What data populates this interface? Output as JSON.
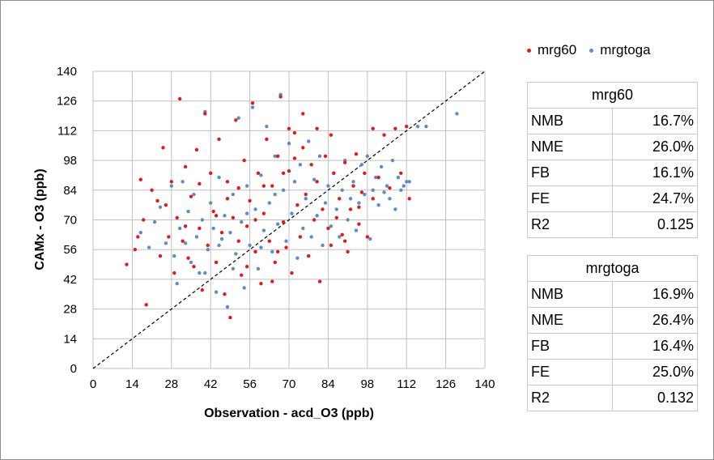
{
  "chart_data": {
    "type": "scatter",
    "xlabel": "Observation - acd_O3  (ppb)",
    "ylabel": "CAMx - O3  (ppb)",
    "xlim": [
      0,
      140
    ],
    "ylim": [
      0,
      140
    ],
    "x_ticks": [
      "0",
      "14",
      "28",
      "42",
      "56",
      "70",
      "84",
      "98",
      "112",
      "126",
      "140"
    ],
    "y_ticks": [
      "0",
      "14",
      "28",
      "42",
      "56",
      "70",
      "84",
      "98",
      "112",
      "126",
      "140"
    ],
    "grid": true,
    "reference_line": "1:1 dashed",
    "legend_position": "top-right",
    "series": [
      {
        "name": "mrg60",
        "color": "#e31a1c",
        "points": [
          [
            12,
            49
          ],
          [
            15,
            56
          ],
          [
            16,
            62
          ],
          [
            17,
            89
          ],
          [
            18,
            70
          ],
          [
            19,
            30
          ],
          [
            21,
            84
          ],
          [
            23,
            79
          ],
          [
            24,
            53
          ],
          [
            25,
            104
          ],
          [
            27,
            62
          ],
          [
            28,
            88
          ],
          [
            29,
            45
          ],
          [
            30,
            71
          ],
          [
            31,
            127
          ],
          [
            32,
            60
          ],
          [
            33,
            95
          ],
          [
            34,
            52
          ],
          [
            35,
            81
          ],
          [
            36,
            48
          ],
          [
            37,
            103
          ],
          [
            38,
            66
          ],
          [
            39,
            37
          ],
          [
            40,
            120
          ],
          [
            41,
            58
          ],
          [
            42,
            92
          ],
          [
            43,
            74
          ],
          [
            44,
            50
          ],
          [
            45,
            108
          ],
          [
            46,
            64
          ],
          [
            47,
            35
          ],
          [
            48,
            88
          ],
          [
            49,
            24
          ],
          [
            50,
            71
          ],
          [
            51,
            117
          ],
          [
            52,
            60
          ],
          [
            53,
            44
          ],
          [
            54,
            98
          ],
          [
            55,
            67
          ],
          [
            56,
            79
          ],
          [
            57,
            125
          ],
          [
            58,
            55
          ],
          [
            59,
            92
          ],
          [
            60,
            40
          ],
          [
            61,
            73
          ],
          [
            62,
            108
          ],
          [
            63,
            60
          ],
          [
            64,
            86
          ],
          [
            65,
            50
          ],
          [
            66,
            100
          ],
          [
            67,
            128
          ],
          [
            68,
            69
          ],
          [
            69,
            57
          ],
          [
            70,
            93
          ],
          [
            71,
            45
          ],
          [
            72,
            111
          ],
          [
            73,
            77
          ],
          [
            74,
            62
          ],
          [
            75,
            104
          ],
          [
            76,
            82
          ],
          [
            77,
            53
          ],
          [
            78,
            96
          ],
          [
            79,
            70
          ],
          [
            80,
            88
          ],
          [
            81,
            41
          ],
          [
            82,
            75
          ],
          [
            83,
            100
          ],
          [
            84,
            66
          ],
          [
            85,
            58
          ],
          [
            86,
            92
          ],
          [
            87,
            71
          ],
          [
            88,
            80
          ],
          [
            89,
            63
          ],
          [
            90,
            97
          ],
          [
            91,
            55
          ],
          [
            92,
            75
          ],
          [
            93,
            86
          ],
          [
            94,
            101
          ],
          [
            95,
            68
          ],
          [
            96,
            83
          ],
          [
            97,
            92
          ],
          [
            98,
            62
          ],
          [
            100,
            113
          ],
          [
            102,
            90
          ],
          [
            104,
            110
          ],
          [
            106,
            85
          ],
          [
            108,
            113
          ],
          [
            110,
            92
          ],
          [
            112,
            114
          ],
          [
            113,
            80
          ],
          [
            26,
            77
          ],
          [
            33,
            67
          ],
          [
            38,
            87
          ],
          [
            44,
            72
          ],
          [
            48,
            80
          ],
          [
            52,
            85
          ],
          [
            55,
            48
          ],
          [
            58,
            70
          ],
          [
            61,
            86
          ],
          [
            64,
            41
          ],
          [
            66,
            55
          ],
          [
            68,
            92
          ],
          [
            70,
            113
          ],
          [
            72,
            99
          ],
          [
            75,
            120
          ],
          [
            80,
            113
          ],
          [
            85,
            110
          ],
          [
            90,
            60
          ],
          [
            95,
            76
          ],
          [
            100,
            80
          ]
        ]
      },
      {
        "name": "mrgtoga",
        "color": "#5b8ccf",
        "points": [
          [
            17,
            64
          ],
          [
            20,
            57
          ],
          [
            22,
            69
          ],
          [
            24,
            76
          ],
          [
            26,
            59
          ],
          [
            28,
            86
          ],
          [
            29,
            53
          ],
          [
            30,
            40
          ],
          [
            31,
            66
          ],
          [
            32,
            88
          ],
          [
            33,
            59
          ],
          [
            34,
            74
          ],
          [
            35,
            50
          ],
          [
            36,
            82
          ],
          [
            37,
            62
          ],
          [
            38,
            45
          ],
          [
            39,
            70
          ],
          [
            40,
            121
          ],
          [
            41,
            56
          ],
          [
            42,
            78
          ],
          [
            43,
            66
          ],
          [
            44,
            36
          ],
          [
            45,
            90
          ],
          [
            46,
            61
          ],
          [
            47,
            72
          ],
          [
            48,
            29
          ],
          [
            49,
            64
          ],
          [
            50,
            82
          ],
          [
            51,
            54
          ],
          [
            52,
            118
          ],
          [
            53,
            69
          ],
          [
            54,
            38
          ],
          [
            55,
            86
          ],
          [
            56,
            58
          ],
          [
            57,
            123
          ],
          [
            58,
            75
          ],
          [
            59,
            47
          ],
          [
            60,
            91
          ],
          [
            61,
            65
          ],
          [
            62,
            114
          ],
          [
            63,
            78
          ],
          [
            64,
            55
          ],
          [
            65,
            100
          ],
          [
            66,
            68
          ],
          [
            67,
            129
          ],
          [
            68,
            84
          ],
          [
            69,
            60
          ],
          [
            70,
            106
          ],
          [
            71,
            73
          ],
          [
            72,
            88
          ],
          [
            73,
            52
          ],
          [
            74,
            96
          ],
          [
            75,
            66
          ],
          [
            76,
            80
          ],
          [
            77,
            107
          ],
          [
            78,
            62
          ],
          [
            79,
            89
          ],
          [
            80,
            72
          ],
          [
            81,
            100
          ],
          [
            82,
            58
          ],
          [
            83,
            78
          ],
          [
            84,
            86
          ],
          [
            85,
            67
          ],
          [
            86,
            92
          ],
          [
            87,
            75
          ],
          [
            88,
            62
          ],
          [
            89,
            84
          ],
          [
            90,
            98
          ],
          [
            91,
            70
          ],
          [
            92,
            80
          ],
          [
            93,
            88
          ],
          [
            94,
            65
          ],
          [
            95,
            78
          ],
          [
            96,
            96
          ],
          [
            97,
            82
          ],
          [
            98,
            100
          ],
          [
            99,
            61
          ],
          [
            100,
            84
          ],
          [
            101,
            90
          ],
          [
            102,
            77
          ],
          [
            103,
            95
          ],
          [
            104,
            83
          ],
          [
            105,
            86
          ],
          [
            106,
            80
          ],
          [
            107,
            98
          ],
          [
            108,
            75
          ],
          [
            109,
            90
          ],
          [
            110,
            84
          ],
          [
            111,
            86
          ],
          [
            112,
            88
          ],
          [
            113,
            88
          ],
          [
            116,
            114
          ],
          [
            119,
            114
          ],
          [
            130,
            120
          ],
          [
            40,
            45
          ],
          [
            45,
            58
          ],
          [
            50,
            47
          ],
          [
            55,
            73
          ],
          [
            60,
            57
          ],
          [
            65,
            82
          ]
        ]
      }
    ]
  },
  "legend": {
    "items": [
      {
        "label": "mrg60",
        "color": "#e31a1c"
      },
      {
        "label": "mrgtoga",
        "color": "#5b8ccf"
      }
    ]
  },
  "stats": {
    "mrg60": {
      "title": "mrg60",
      "rows": [
        {
          "key": "NMB",
          "value": "16.7%"
        },
        {
          "key": "NME",
          "value": "26.0%"
        },
        {
          "key": "FB",
          "value": "16.1%"
        },
        {
          "key": "FE",
          "value": "24.7%"
        },
        {
          "key": "R2",
          "value": "0.125"
        }
      ]
    },
    "mrgtoga": {
      "title": "mrgtoga",
      "rows": [
        {
          "key": "NMB",
          "value": "16.9%"
        },
        {
          "key": "NME",
          "value": "26.4%"
        },
        {
          "key": "FB",
          "value": "16.4%"
        },
        {
          "key": "FE",
          "value": "25.0%"
        },
        {
          "key": "R2",
          "value": "0.132"
        }
      ]
    }
  }
}
